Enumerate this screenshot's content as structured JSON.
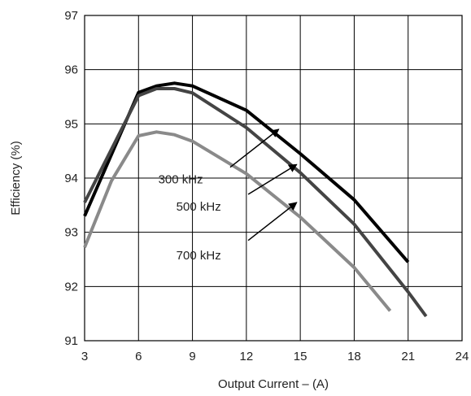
{
  "chart_data": {
    "type": "line",
    "title": "",
    "xlabel": "Output Current – (A)",
    "ylabel": "Efficiency (%)",
    "xlim": [
      3,
      24
    ],
    "ylim": [
      91,
      97
    ],
    "x_ticks": [
      3,
      6,
      9,
      12,
      15,
      18,
      21,
      24
    ],
    "y_ticks": [
      91,
      92,
      93,
      94,
      95,
      96,
      97
    ],
    "x_tick_labels": [
      "3",
      "6",
      "9",
      "12",
      "15",
      "18",
      "21",
      "24"
    ],
    "y_tick_labels": [
      "91",
      "92",
      "93",
      "94",
      "95",
      "96",
      "97"
    ],
    "grid": true,
    "series": [
      {
        "name": "300 kHz",
        "color": "#000000",
        "points": [
          [
            3,
            93.3
          ],
          [
            6,
            95.58
          ],
          [
            7,
            95.7
          ],
          [
            8,
            95.75
          ],
          [
            9,
            95.7
          ],
          [
            12,
            95.25
          ],
          [
            15,
            94.45
          ],
          [
            18,
            93.6
          ],
          [
            21,
            92.45
          ]
        ]
      },
      {
        "name": "500 kHz",
        "color": "#444444",
        "points": [
          [
            3,
            93.55
          ],
          [
            6,
            95.52
          ],
          [
            7,
            95.65
          ],
          [
            8,
            95.65
          ],
          [
            9,
            95.57
          ],
          [
            12,
            94.93
          ],
          [
            15,
            94.1
          ],
          [
            18,
            93.15
          ],
          [
            21,
            91.9
          ],
          [
            22,
            91.45
          ]
        ]
      },
      {
        "name": "700 kHz",
        "color": "#8a8a8a",
        "points": [
          [
            3,
            92.72
          ],
          [
            4.5,
            93.95
          ],
          [
            6,
            94.78
          ],
          [
            7,
            94.85
          ],
          [
            8,
            94.8
          ],
          [
            9,
            94.68
          ],
          [
            12,
            94.08
          ],
          [
            15,
            93.28
          ],
          [
            18,
            92.35
          ],
          [
            20,
            91.55
          ]
        ]
      }
    ],
    "annotations": [
      {
        "text": "300 kHz",
        "series": "300 kHz",
        "label_at": [
          7.1,
          93.9
        ],
        "arrow_from": [
          11.1,
          94.2
        ],
        "arrow_to": [
          13.8,
          94.9
        ]
      },
      {
        "text": "500 kHz",
        "series": "500 kHz",
        "label_at": [
          8.1,
          93.4
        ],
        "arrow_from": [
          12.1,
          93.7
        ],
        "arrow_to": [
          14.8,
          94.25
        ]
      },
      {
        "text": "700 kHz",
        "series": "700 kHz",
        "label_at": [
          8.1,
          92.5
        ],
        "arrow_from": [
          12.1,
          92.85
        ],
        "arrow_to": [
          14.8,
          93.55
        ]
      }
    ]
  }
}
